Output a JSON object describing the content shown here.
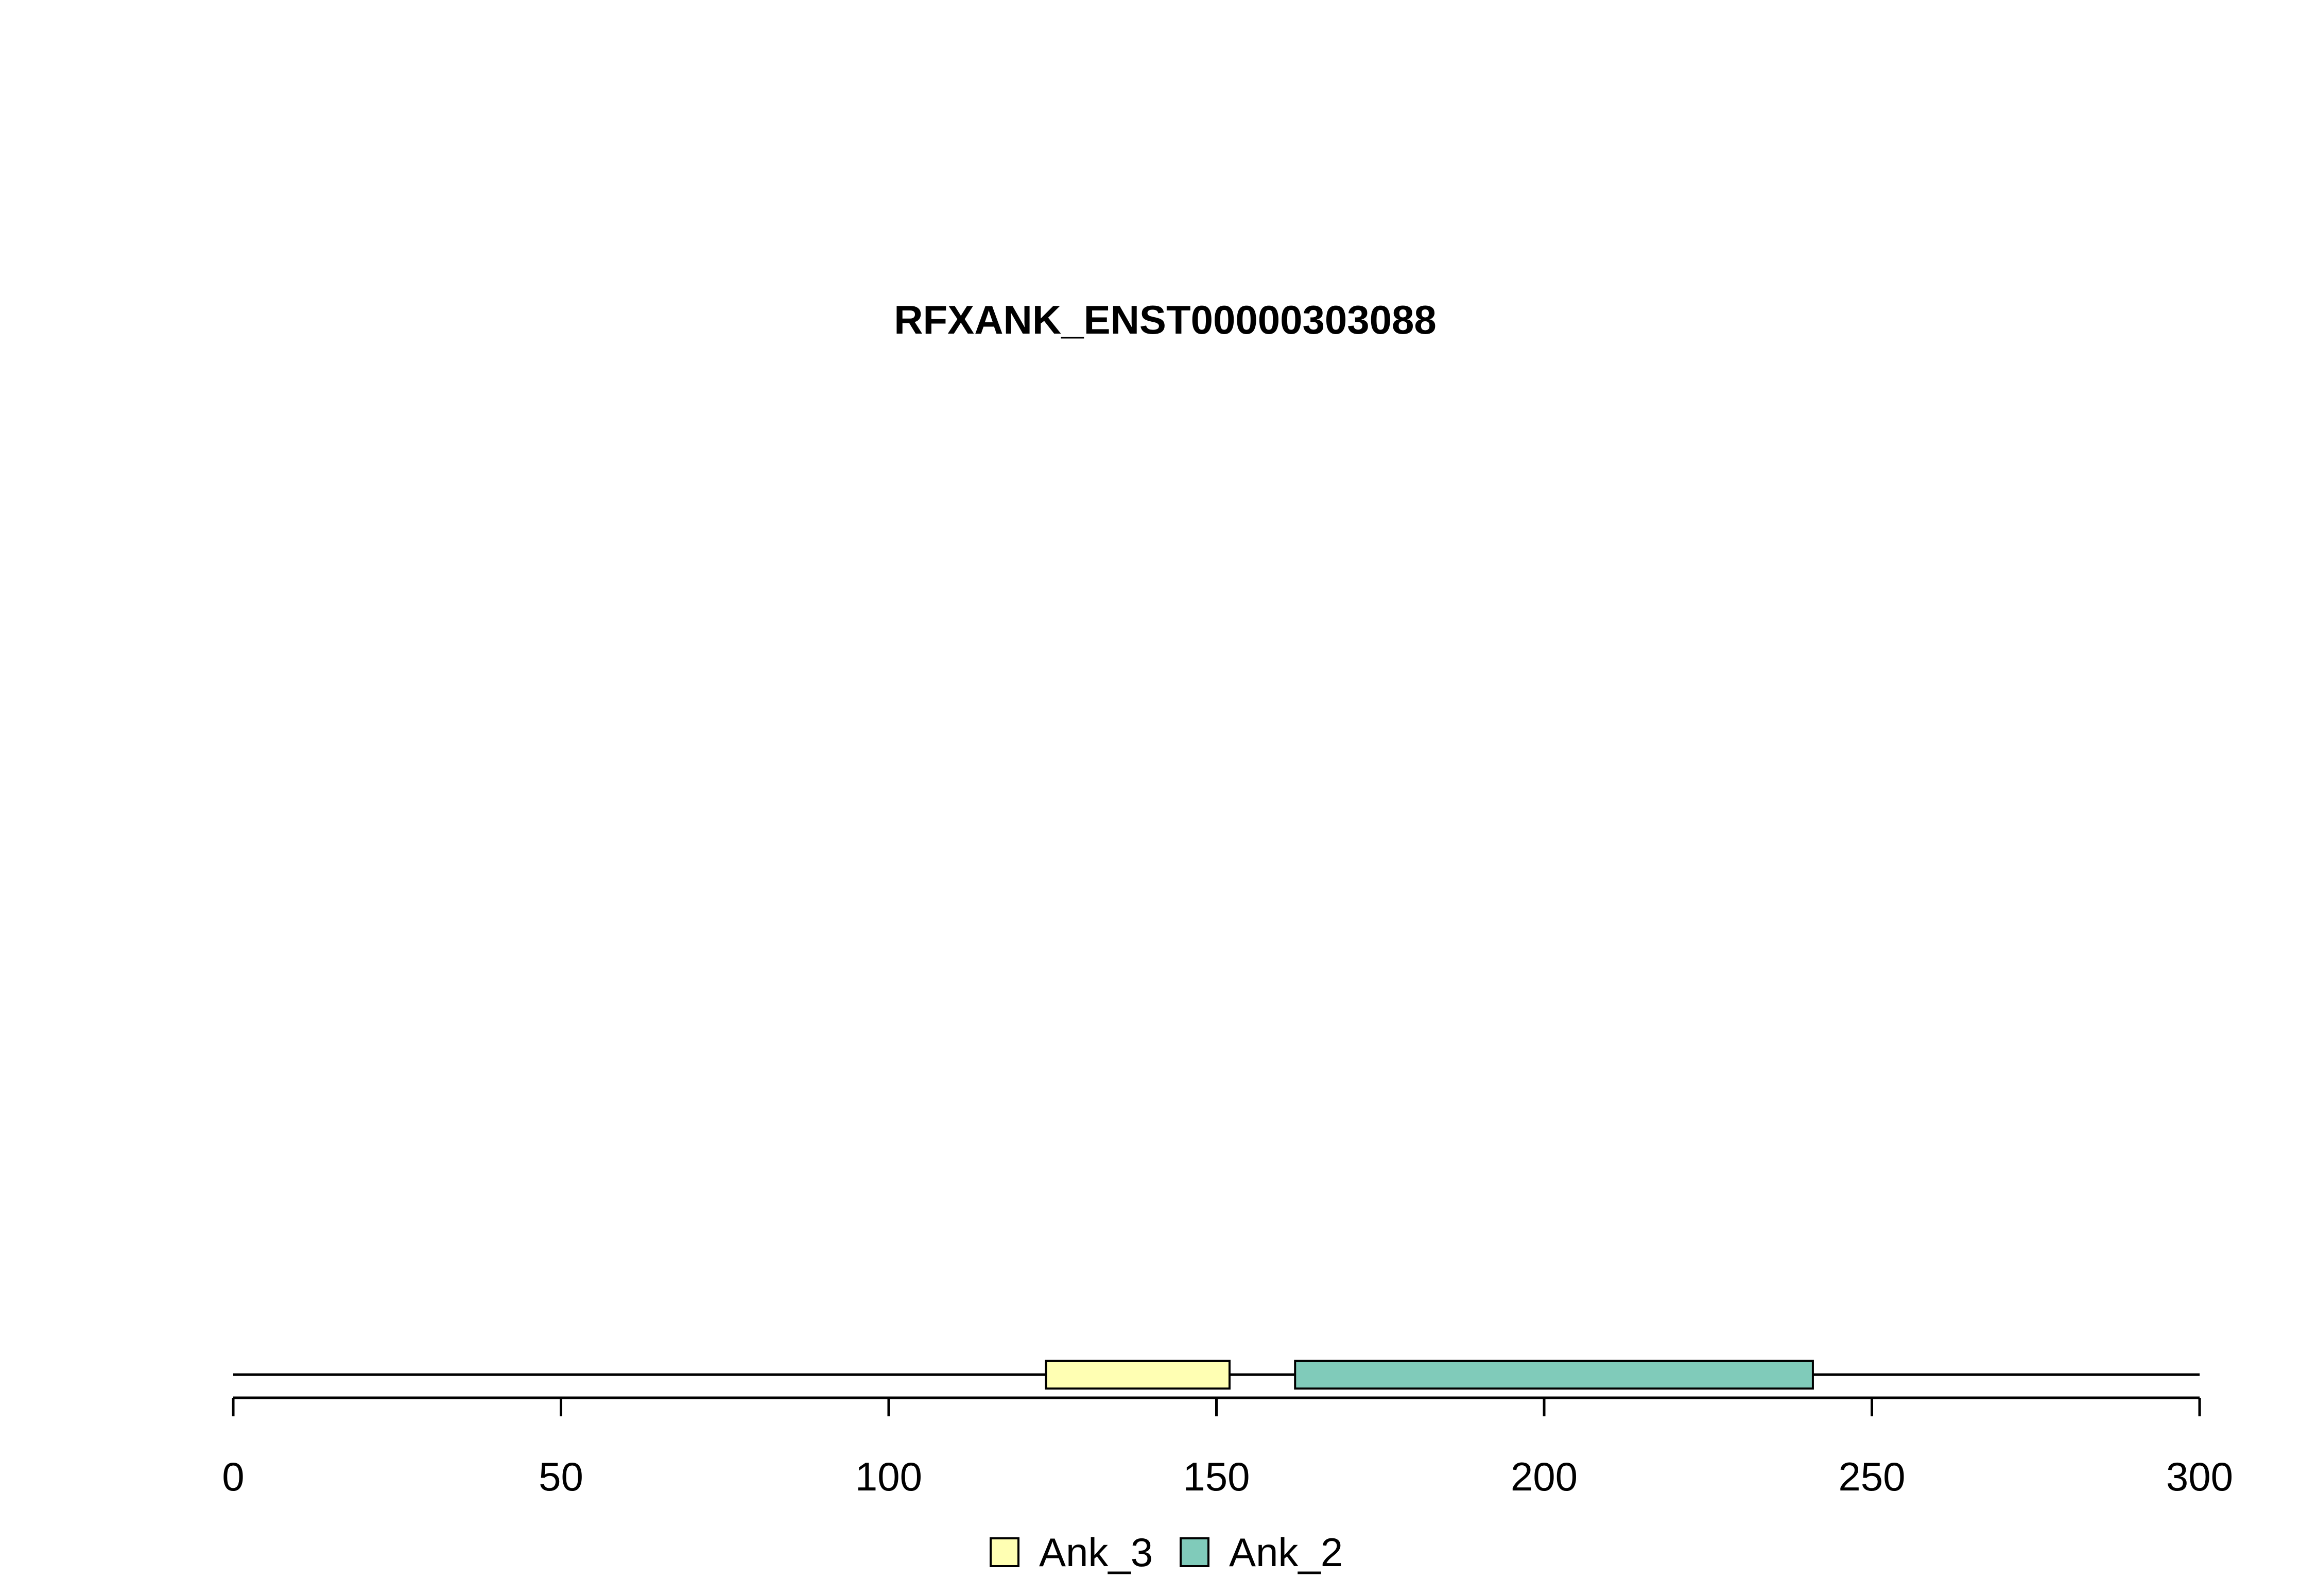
{
  "chart_data": {
    "type": "domain-track",
    "title": "RFXANK_ENST00000303088",
    "protein_length": 300,
    "xlim": [
      0,
      300
    ],
    "ticks": [
      0,
      50,
      100,
      150,
      200,
      250,
      300
    ],
    "tick_labels": [
      "0",
      "50",
      "100",
      "150",
      "200",
      "250",
      "300"
    ],
    "domains": [
      {
        "name": "Ank_3",
        "start": 124,
        "end": 152,
        "color": "#ffffb3"
      },
      {
        "name": "Ank_2",
        "start": 162,
        "end": 241,
        "color": "#80cbba"
      }
    ],
    "legend": {
      "position": "bottom-center",
      "items": [
        {
          "label": "Ank_3",
          "color": "#ffffb3"
        },
        {
          "label": "Ank_2",
          "color": "#80cbba"
        }
      ]
    }
  }
}
